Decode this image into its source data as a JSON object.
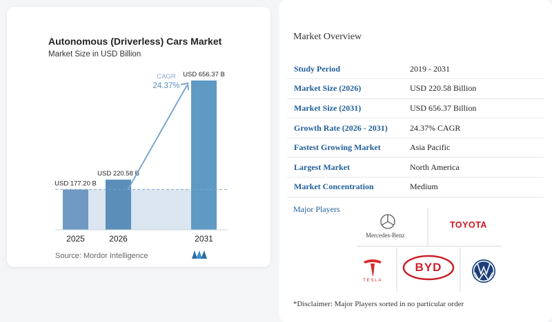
{
  "chart": {
    "title": "Autonomous (Driverless) Cars Market",
    "subtitle": "Market Size in USD Billion",
    "source": "Source: Mordor Intelligence",
    "cagr_label": "CAGR",
    "cagr_value": "24.37%",
    "colors": {
      "bar_light": "#6f99c2",
      "bar_dark": "#5b8fba",
      "bar_tall": "#5f9ac4",
      "band": "#dce6f0",
      "arrow": "#7aa6cf",
      "dash": "#7aa6cf"
    }
  },
  "chart_data": {
    "type": "bar",
    "categories": [
      "2025",
      "2026",
      "2031"
    ],
    "values": [
      177.2,
      220.58,
      656.37
    ],
    "value_labels": [
      "USD 177.20 B",
      "USD 220.58 B",
      "USD 656.37 B"
    ],
    "title": "Autonomous (Driverless) Cars Market",
    "subtitle": "Market Size in USD Billion",
    "ylim": [
      0,
      700
    ]
  },
  "overview": {
    "title": "Market Overview",
    "rows": [
      {
        "key": "Study Period",
        "value": "2019 - 2031"
      },
      {
        "key": "Market Size (2026)",
        "value": "USD 220.58 Billion"
      },
      {
        "key": "Market Size (2031)",
        "value": "USD 656.37 Billion"
      },
      {
        "key": "Growth Rate (2026 - 2031)",
        "value": "24.37% CAGR"
      },
      {
        "key": "Fastest Growing Market",
        "value": "Asia Pacific"
      },
      {
        "key": "Largest Market",
        "value": "North America"
      },
      {
        "key": "Market Concentration",
        "value": "Medium"
      }
    ],
    "players_title": "Major Players",
    "players": {
      "mercedes": "Mercedes-Benz",
      "toyota": "TOYOTA",
      "tesla": "TESLA",
      "byd": "BYD"
    },
    "disclaimer": "*Disclaimer: Major Players sorted in no particular order"
  }
}
